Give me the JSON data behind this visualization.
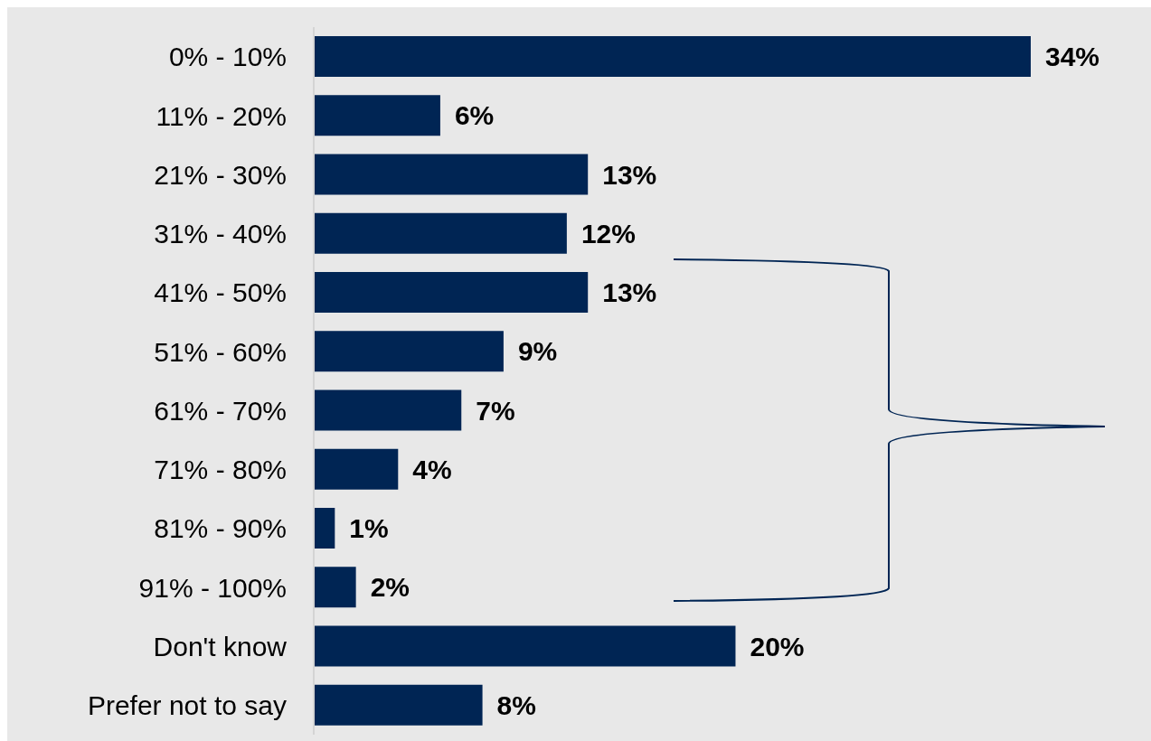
{
  "chart_data": {
    "type": "bar",
    "orientation": "horizontal",
    "categories": [
      "0% - 10%",
      "11% - 20%",
      "21% - 30%",
      "31% - 40%",
      "41% - 50%",
      "51% - 60%",
      "61% - 70%",
      "71% - 80%",
      "81% - 90%",
      "91% - 100%",
      "Don't know",
      "Prefer not to say"
    ],
    "values": [
      34,
      6,
      13,
      12,
      13,
      9,
      7,
      4,
      1,
      2,
      20,
      8
    ],
    "value_labels": [
      "34%",
      "6%",
      "13%",
      "12%",
      "13%",
      "9%",
      "7%",
      "4%",
      "1%",
      "2%",
      "20%",
      "8%"
    ],
    "color": "#002554"
  }
}
